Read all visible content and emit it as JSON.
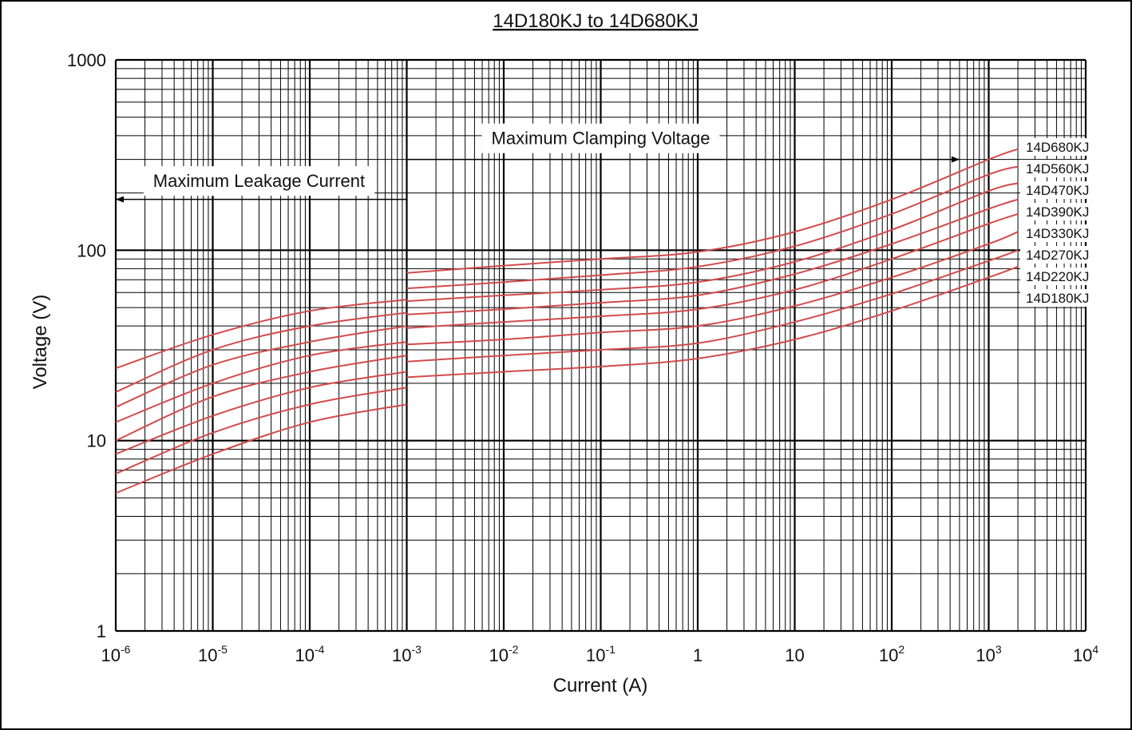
{
  "chart_data": {
    "type": "line",
    "title": "14D180KJ to 14D680KJ",
    "xlabel": "Current (A)",
    "ylabel": "Voltage (V)",
    "x_scale": "log",
    "y_scale": "log",
    "xlim": [
      1e-06,
      10000
    ],
    "ylim": [
      1,
      1000
    ],
    "grid": true,
    "x_ticks": [
      {
        "value": 1e-06,
        "base": "10",
        "exp": "-6"
      },
      {
        "value": 1e-05,
        "base": "10",
        "exp": "-5"
      },
      {
        "value": 0.0001,
        "base": "10",
        "exp": "-4"
      },
      {
        "value": 0.001,
        "base": "10",
        "exp": "-3"
      },
      {
        "value": 0.01,
        "base": "10",
        "exp": "-2"
      },
      {
        "value": 0.1,
        "base": "10",
        "exp": "-1"
      },
      {
        "value": 1,
        "base": "1",
        "exp": ""
      },
      {
        "value": 10,
        "base": "10",
        "exp": ""
      },
      {
        "value": 100,
        "base": "10",
        "exp": "2"
      },
      {
        "value": 1000,
        "base": "10",
        "exp": "3"
      },
      {
        "value": 10000,
        "base": "10",
        "exp": "4"
      }
    ],
    "y_ticks": [
      {
        "value": 1,
        "label": "1"
      },
      {
        "value": 10,
        "label": "10"
      },
      {
        "value": 100,
        "label": "100"
      },
      {
        "value": 1000,
        "label": "1000"
      }
    ],
    "annotations": [
      {
        "text": "Maximum Clamping Voltage",
        "x": 0.1,
        "y": 360,
        "arrow_from": 0.001,
        "arrow_to": 500,
        "arrow_y": 300
      },
      {
        "text": "Maximum Leakage Current",
        "x": 3e-05,
        "y": 215,
        "arrow_from": 0.001,
        "arrow_to": 1e-06,
        "arrow_y": 185
      }
    ],
    "series": [
      {
        "name": "14D680KJ",
        "leakage": [
          [
            1e-06,
            24
          ],
          [
            1e-05,
            36
          ],
          [
            0.0001,
            48
          ],
          [
            0.001,
            55
          ]
        ],
        "clamping": [
          [
            0.001,
            76
          ],
          [
            0.01,
            83
          ],
          [
            0.1,
            90
          ],
          [
            1,
            98
          ],
          [
            10,
            125
          ],
          [
            100,
            185
          ],
          [
            1000,
            300
          ],
          [
            2000,
            340
          ]
        ]
      },
      {
        "name": "14D560KJ",
        "leakage": [
          [
            1e-06,
            18
          ],
          [
            1e-05,
            30
          ],
          [
            0.0001,
            40
          ],
          [
            0.001,
            47
          ]
        ],
        "clamping": [
          [
            0.001,
            63
          ],
          [
            0.01,
            68
          ],
          [
            0.1,
            74
          ],
          [
            1,
            82
          ],
          [
            10,
            105
          ],
          [
            100,
            155
          ],
          [
            1000,
            250
          ],
          [
            2000,
            275
          ]
        ]
      },
      {
        "name": "14D470KJ",
        "leakage": [
          [
            1e-06,
            15
          ],
          [
            1e-05,
            25
          ],
          [
            0.0001,
            33
          ],
          [
            0.001,
            40
          ]
        ],
        "clamping": [
          [
            0.001,
            54
          ],
          [
            0.01,
            58
          ],
          [
            0.1,
            62
          ],
          [
            1,
            68
          ],
          [
            10,
            87
          ],
          [
            100,
            128
          ],
          [
            1000,
            205
          ],
          [
            2000,
            225
          ]
        ]
      },
      {
        "name": "14D390KJ",
        "leakage": [
          [
            1e-06,
            12.5
          ],
          [
            1e-05,
            20
          ],
          [
            0.0001,
            28
          ],
          [
            0.001,
            33
          ]
        ],
        "clamping": [
          [
            0.001,
            46
          ],
          [
            0.01,
            49
          ],
          [
            0.1,
            53
          ],
          [
            1,
            58
          ],
          [
            10,
            75
          ],
          [
            100,
            108
          ],
          [
            1000,
            165
          ],
          [
            2000,
            185
          ]
        ]
      },
      {
        "name": "14D330KJ",
        "leakage": [
          [
            1e-06,
            10
          ],
          [
            1e-05,
            17
          ],
          [
            0.0001,
            23
          ],
          [
            0.001,
            28
          ]
        ],
        "clamping": [
          [
            0.001,
            39
          ],
          [
            0.01,
            42
          ],
          [
            0.1,
            45
          ],
          [
            1,
            49
          ],
          [
            10,
            62
          ],
          [
            100,
            90
          ],
          [
            1000,
            138
          ],
          [
            2000,
            155
          ]
        ]
      },
      {
        "name": "14D270KJ",
        "leakage": [
          [
            1e-06,
            8.5
          ],
          [
            1e-05,
            13.5
          ],
          [
            0.0001,
            19
          ],
          [
            0.001,
            23
          ]
        ],
        "clamping": [
          [
            0.001,
            32
          ],
          [
            0.01,
            34
          ],
          [
            0.1,
            37
          ],
          [
            1,
            40
          ],
          [
            10,
            51
          ],
          [
            100,
            72
          ],
          [
            1000,
            108
          ],
          [
            2000,
            125
          ]
        ]
      },
      {
        "name": "14D220KJ",
        "leakage": [
          [
            1e-06,
            6.7
          ],
          [
            1e-05,
            11
          ],
          [
            0.0001,
            15.5
          ],
          [
            0.001,
            19
          ]
        ],
        "clamping": [
          [
            0.001,
            26
          ],
          [
            0.01,
            28
          ],
          [
            0.1,
            30
          ],
          [
            1,
            32.5
          ],
          [
            10,
            42
          ],
          [
            100,
            59
          ],
          [
            1000,
            88
          ],
          [
            2000,
            100
          ]
        ]
      },
      {
        "name": "14D180KJ",
        "leakage": [
          [
            1e-06,
            5.3
          ],
          [
            1e-05,
            8.5
          ],
          [
            0.0001,
            12.5
          ],
          [
            0.001,
            15.5
          ]
        ],
        "clamping": [
          [
            0.001,
            21.5
          ],
          [
            0.01,
            23
          ],
          [
            0.1,
            24.5
          ],
          [
            1,
            27
          ],
          [
            10,
            34
          ],
          [
            100,
            48
          ],
          [
            1000,
            72
          ],
          [
            2000,
            82
          ]
        ]
      }
    ],
    "colors": {
      "series": "#d24b4b",
      "grid": "#000000",
      "text": "#111111"
    }
  }
}
